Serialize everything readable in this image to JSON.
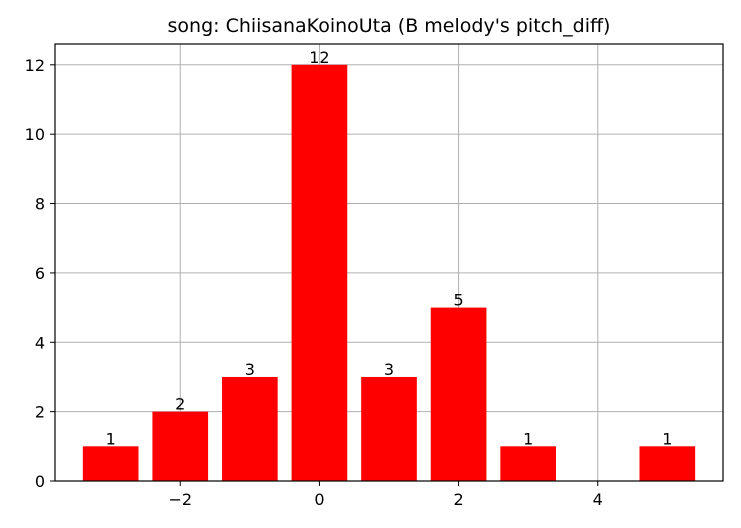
{
  "chart_data": {
    "type": "bar",
    "title": "song: ChiisanaKoinoUta (B melody's pitch_diff)",
    "xlabel": "",
    "ylabel": "",
    "x": [
      -3,
      -2,
      -1,
      0,
      1,
      2,
      3,
      5
    ],
    "values": [
      1,
      2,
      3,
      12,
      3,
      5,
      1,
      1
    ],
    "bar_labels": [
      "1",
      "2",
      "3",
      "12",
      "3",
      "5",
      "1",
      "1"
    ],
    "xlim": [
      -3.8,
      5.8
    ],
    "ylim": [
      0,
      12.6
    ],
    "xticks": [
      -2,
      0,
      2,
      4
    ],
    "xtick_labels": [
      "−2",
      "0",
      "2",
      "4"
    ],
    "yticks": [
      0,
      2,
      4,
      6,
      8,
      10,
      12
    ],
    "ytick_labels": [
      "0",
      "2",
      "4",
      "6",
      "8",
      "10",
      "12"
    ],
    "bar_width": 0.8,
    "grid": true,
    "bar_color": "#ff0000"
  }
}
